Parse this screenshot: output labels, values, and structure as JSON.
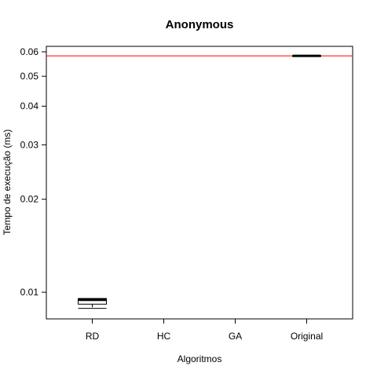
{
  "chart_data": {
    "type": "box",
    "title": "Anonymous",
    "xlabel": "Algoritmos",
    "ylabel": "Tempo de execução (ms)",
    "y_scale": "log",
    "ylim": [
      0.0082,
      0.0625
    ],
    "y_ticks": [
      0.01,
      0.02,
      0.03,
      0.04,
      0.05,
      0.06
    ],
    "y_tick_labels": [
      "0.01",
      "0.02",
      "0.03",
      "0.04",
      "0.05",
      "0.06"
    ],
    "categories": [
      "RD",
      "HC",
      "GA",
      "Original"
    ],
    "boxes": [
      {
        "category": "RD",
        "min": 0.00887,
        "q1": 0.00915,
        "median": 0.00945,
        "q3": 0.00953,
        "max": 0.00955
      },
      {
        "category": "Original",
        "min": 0.0582,
        "q1": 0.0582,
        "median": 0.0582,
        "q3": 0.0582,
        "max": 0.0582
      }
    ],
    "reference_line": {
      "value": 0.0582,
      "color": "#ff0000"
    },
    "colors": {
      "median": "#000000",
      "reference": "#ff0000"
    }
  }
}
